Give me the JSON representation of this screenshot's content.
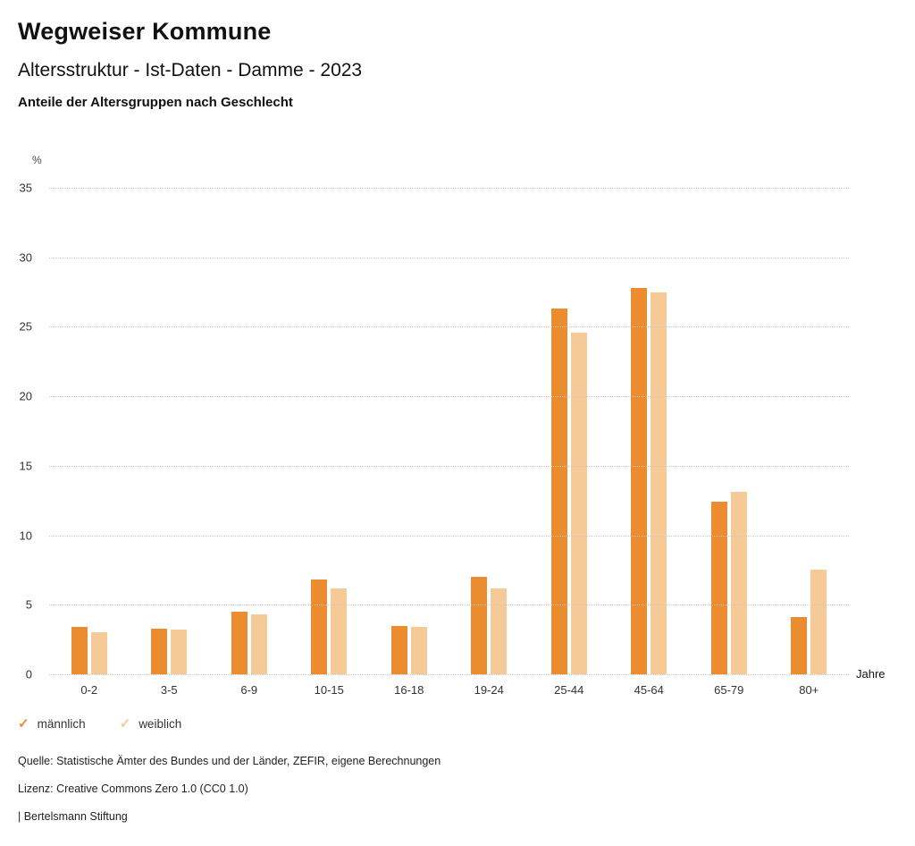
{
  "header": {
    "title": "Wegweiser Kommune",
    "subtitle": "Altersstruktur - Ist-Daten - Damme - 2023",
    "chart_heading": "Anteile der Altersgruppen nach Geschlecht"
  },
  "chart_data": {
    "type": "bar",
    "title": "Anteile der Altersgruppen nach Geschlecht",
    "y_unit_label": "%",
    "x_unit_label": "Jahre",
    "categories": [
      "0-2",
      "3-5",
      "6-9",
      "10-15",
      "16-18",
      "19-24",
      "25-44",
      "45-64",
      "65-79",
      "80+"
    ],
    "series": [
      {
        "name": "männlich",
        "color": "#EB8C2F",
        "values": [
          3.4,
          3.3,
          4.5,
          6.8,
          3.5,
          7.0,
          26.3,
          27.8,
          12.4,
          4.1
        ]
      },
      {
        "name": "weiblich",
        "color": "#F6CA96",
        "values": [
          3.0,
          3.2,
          4.3,
          6.2,
          3.4,
          6.2,
          24.6,
          27.5,
          13.1,
          7.5
        ]
      }
    ],
    "ylim": [
      0,
      35
    ],
    "ytick_step": 5,
    "grid": true,
    "grid_style": "dotted",
    "legend_position": "bottom-left"
  },
  "legend": {
    "items": [
      {
        "label": "männlich",
        "color": "#EB8C2F"
      },
      {
        "label": "weiblich",
        "color": "#F6CA96"
      }
    ]
  },
  "footer": {
    "source": "Quelle: Statistische Ämter des Bundes und der Länder, ZEFIR, eigene Berechnungen",
    "license": "Lizenz: Creative Commons Zero 1.0 (CC0 1.0)",
    "attribution": "| Bertelsmann Stiftung"
  }
}
